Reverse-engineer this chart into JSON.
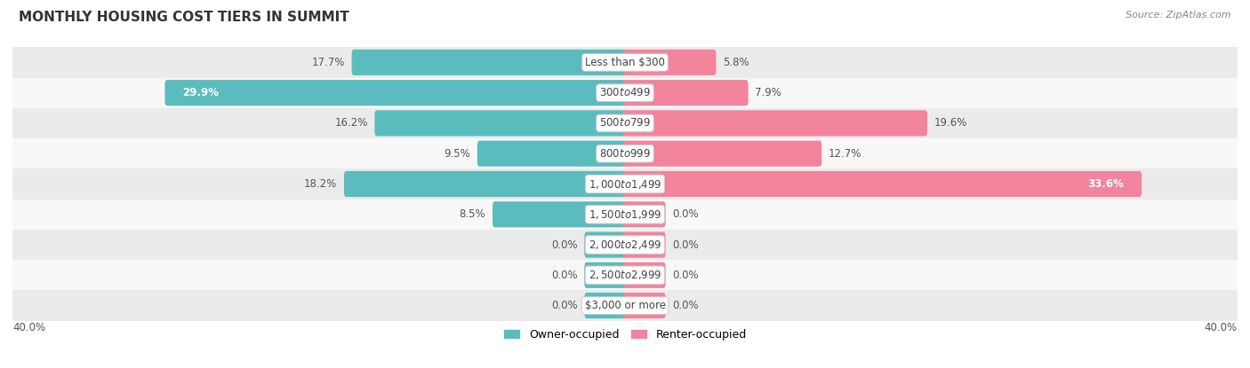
{
  "title": "MONTHLY HOUSING COST TIERS IN SUMMIT",
  "source": "Source: ZipAtlas.com",
  "categories": [
    "Less than $300",
    "$300 to $499",
    "$500 to $799",
    "$800 to $999",
    "$1,000 to $1,499",
    "$1,500 to $1,999",
    "$2,000 to $2,499",
    "$2,500 to $2,999",
    "$3,000 or more"
  ],
  "owner_values": [
    17.7,
    29.9,
    16.2,
    9.5,
    18.2,
    8.5,
    0.0,
    0.0,
    0.0
  ],
  "renter_values": [
    5.8,
    7.9,
    19.6,
    12.7,
    33.6,
    0.0,
    0.0,
    0.0,
    0.0
  ],
  "owner_color": "#5bbcbe",
  "renter_color": "#f2849e",
  "axis_limit": 40.0,
  "bar_height": 0.55,
  "stub_size": 2.5,
  "bg_row_colors": [
    "#ebebeb",
    "#f8f8f8"
  ],
  "title_fontsize": 11,
  "label_fontsize": 8.5,
  "category_fontsize": 8.5,
  "source_fontsize": 8,
  "legend_fontsize": 9
}
